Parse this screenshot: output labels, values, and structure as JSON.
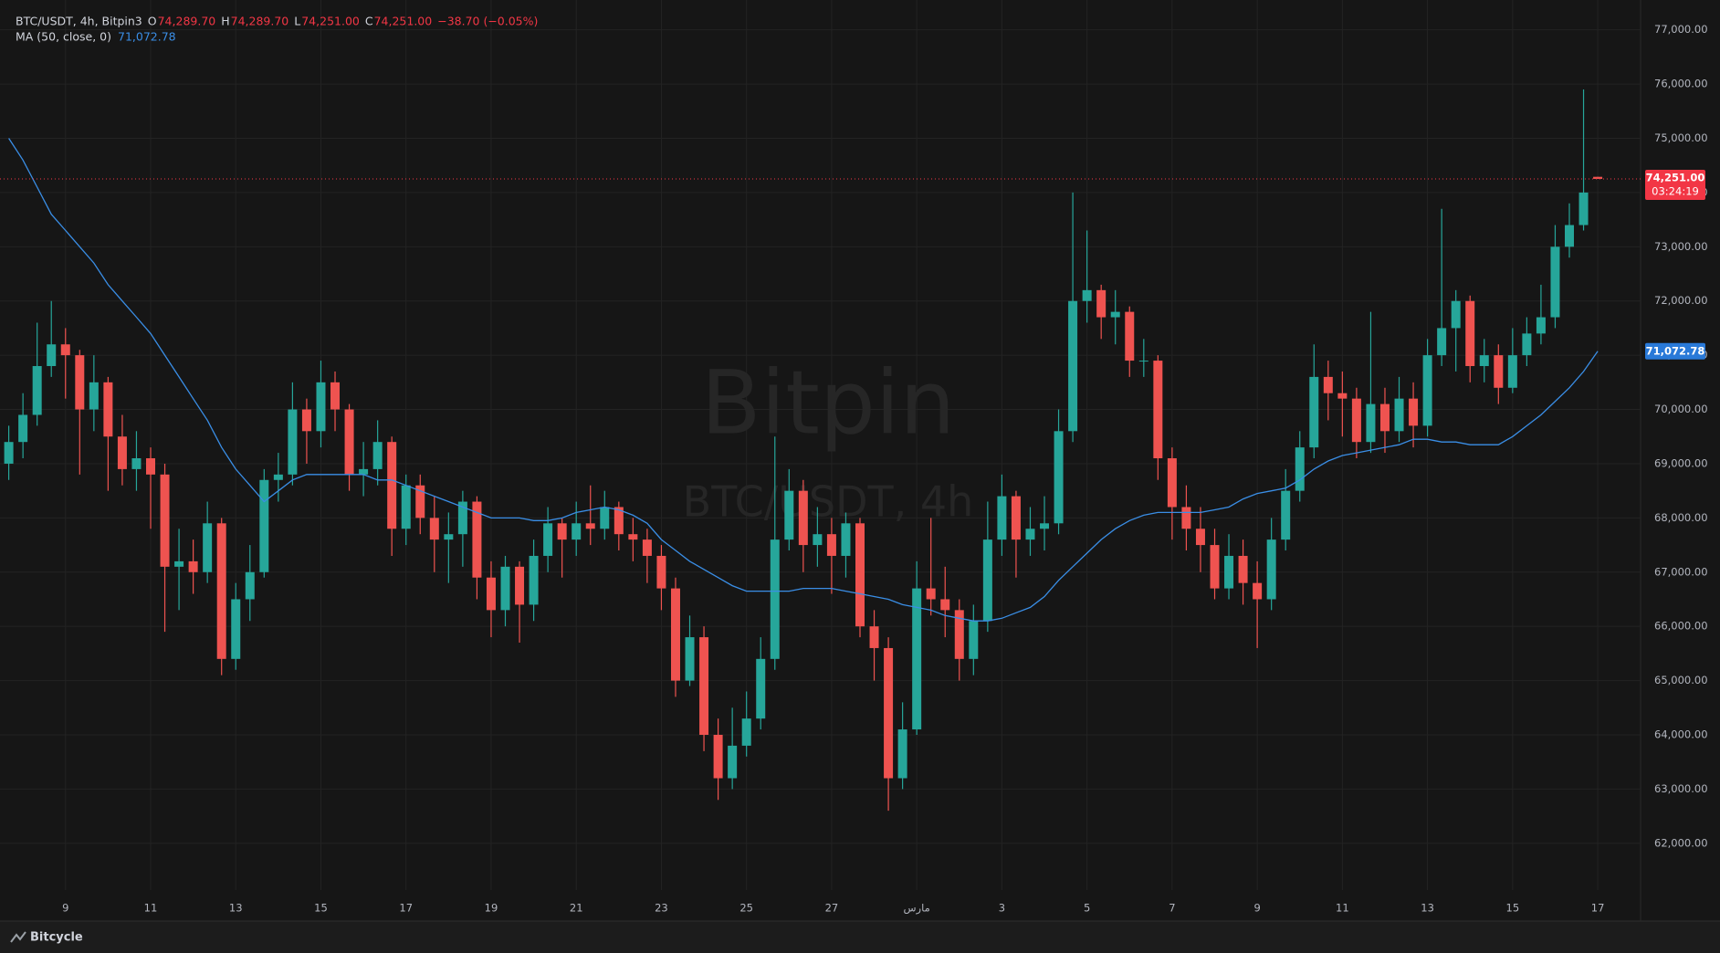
{
  "chart_data": {
    "type": "candlestick",
    "title": "BTC/USDT, 4h, Bitpin3",
    "ohlc_legend": [
      {
        "key": "O",
        "value": "74,289.70"
      },
      {
        "key": "H",
        "value": "74,289.70"
      },
      {
        "key": "L",
        "value": "74,251.00"
      },
      {
        "key": "C",
        "value": "74,251.00"
      }
    ],
    "change": "−38.70 (−0.05%)",
    "watermark": "Bitpin",
    "watermark_sub": "BTC/USDT, 4h",
    "footer": "Bitcycle",
    "up_color": "#26a69a",
    "down_color": "#ef5350",
    "grid": true,
    "categories": [
      null,
      null,
      null,
      null,
      "9",
      null,
      null,
      null,
      null,
      null,
      "11",
      null,
      null,
      null,
      null,
      null,
      "13",
      null,
      null,
      null,
      null,
      null,
      "15",
      null,
      null,
      null,
      null,
      null,
      "17",
      null,
      null,
      null,
      null,
      null,
      "19",
      null,
      null,
      null,
      null,
      null,
      "21",
      null,
      null,
      null,
      null,
      null,
      "23",
      null,
      null,
      null,
      null,
      null,
      "25",
      null,
      null,
      null,
      null,
      null,
      "27",
      null,
      null,
      null,
      null,
      null,
      "مارس",
      null,
      null,
      null,
      null,
      null,
      "3",
      null,
      null,
      null,
      null,
      null,
      "5",
      null,
      null,
      null,
      null,
      null,
      "7",
      null,
      null,
      null,
      null,
      null,
      "9",
      null,
      null,
      null,
      null,
      null,
      "11",
      null,
      null,
      null,
      null,
      null,
      "13",
      null,
      null,
      null,
      null,
      null,
      "15",
      null,
      null,
      null,
      null,
      null,
      "17"
    ],
    "open": [
      69000,
      69400,
      69900,
      70800,
      71200,
      71000,
      70000,
      70500,
      69500,
      68900,
      69100,
      68800,
      67100,
      67200,
      67000,
      67900,
      65400,
      66500,
      67000,
      68700,
      68800,
      70000,
      69600,
      70500,
      70000,
      68800,
      68900,
      69400,
      67800,
      68600,
      68000,
      67600,
      67700,
      68300,
      66900,
      66300,
      67100,
      66400,
      67300,
      67900,
      67600,
      67900,
      67800,
      68200,
      67700,
      67600,
      67300,
      66700,
      65000,
      65800,
      64000,
      63200,
      63800,
      64300,
      65400,
      67600,
      68500,
      67500,
      67700,
      67300,
      67900,
      66000,
      65600,
      63200,
      64100,
      66700,
      66500,
      66300,
      65400,
      66100,
      67600,
      68400,
      67600,
      67800,
      67900,
      69600,
      72000,
      72200,
      71700,
      71800,
      70900,
      70900,
      69100,
      68200,
      67800,
      67500,
      66700,
      67300,
      66800,
      66500,
      67600,
      68500,
      69300,
      70600,
      70300,
      70200,
      69400,
      70100,
      69600,
      70200,
      69700,
      71000,
      71500,
      72000,
      70800,
      71000,
      70400,
      71000,
      71400,
      71700,
      73000,
      73400,
      74289.7
    ],
    "high": [
      69700,
      70300,
      71600,
      72000,
      71500,
      71100,
      71000,
      70600,
      69900,
      69600,
      69300,
      69000,
      67800,
      67600,
      68300,
      68000,
      66800,
      67500,
      68900,
      69200,
      70500,
      70200,
      70900,
      70700,
      70100,
      69400,
      69800,
      69500,
      68800,
      68800,
      68400,
      68100,
      68500,
      68400,
      67200,
      67300,
      67200,
      67600,
      68200,
      68000,
      68300,
      68600,
      68500,
      68300,
      68000,
      67800,
      67500,
      66900,
      66200,
      66000,
      64300,
      64500,
      64800,
      65800,
      69500,
      68900,
      68700,
      68200,
      68000,
      68100,
      68000,
      66300,
      65800,
      64600,
      67200,
      68000,
      67100,
      66500,
      66400,
      68300,
      68800,
      68500,
      68200,
      68400,
      70000,
      74000,
      73300,
      72300,
      72200,
      71900,
      71300,
      71000,
      69300,
      68600,
      68200,
      67800,
      67700,
      67600,
      67200,
      68000,
      68900,
      69600,
      71200,
      70900,
      70700,
      70400,
      71800,
      70400,
      70600,
      70500,
      71300,
      73700,
      72200,
      72100,
      71300,
      71200,
      71500,
      71700,
      72300,
      73400,
      73800,
      75900,
      74289.7
    ],
    "low": [
      68700,
      69100,
      69700,
      70600,
      70200,
      68800,
      69600,
      68500,
      68600,
      68500,
      67800,
      65900,
      66300,
      66600,
      66800,
      65100,
      65200,
      66100,
      66900,
      68300,
      68600,
      69000,
      69300,
      69600,
      68500,
      68400,
      68600,
      67300,
      67500,
      67700,
      67000,
      66800,
      67100,
      66500,
      65800,
      66000,
      65700,
      66100,
      67000,
      66900,
      67300,
      67500,
      67600,
      67400,
      67200,
      66800,
      66300,
      64700,
      64900,
      63700,
      62800,
      63000,
      63600,
      64100,
      65200,
      67400,
      67000,
      67100,
      66600,
      66900,
      65800,
      65000,
      62600,
      63000,
      64000,
      66200,
      65800,
      65000,
      65100,
      65900,
      67300,
      66900,
      67300,
      67400,
      67700,
      69400,
      71600,
      71300,
      71200,
      70600,
      70600,
      68700,
      67600,
      67400,
      67000,
      66500,
      66500,
      66400,
      65600,
      66300,
      67400,
      68300,
      69100,
      69800,
      69500,
      69100,
      69200,
      69200,
      69400,
      69300,
      69500,
      70800,
      70700,
      70500,
      70500,
      70100,
      70300,
      70800,
      71200,
      71500,
      72800,
      73300,
      74251
    ],
    "close": [
      69400,
      69900,
      70800,
      71200,
      71000,
      70000,
      70500,
      69500,
      68900,
      69100,
      68800,
      67100,
      67200,
      67000,
      67900,
      65400,
      66500,
      67000,
      68700,
      68800,
      70000,
      69600,
      70500,
      70000,
      68800,
      68900,
      69400,
      67800,
      68600,
      68000,
      67600,
      67700,
      68300,
      66900,
      66300,
      67100,
      66400,
      67300,
      67900,
      67600,
      67900,
      67800,
      68200,
      67700,
      67600,
      67300,
      66700,
      65000,
      65800,
      64000,
      63200,
      63800,
      64300,
      65400,
      67600,
      68500,
      67500,
      67700,
      67300,
      67900,
      66000,
      65600,
      63200,
      64100,
      66700,
      66500,
      66300,
      65400,
      66100,
      67600,
      68400,
      67600,
      67800,
      67900,
      69600,
      72000,
      72200,
      71700,
      71800,
      70900,
      70900,
      69100,
      68200,
      67800,
      67500,
      66700,
      67300,
      66800,
      66500,
      67600,
      68500,
      69300,
      70600,
      70300,
      70200,
      69400,
      70100,
      69600,
      70200,
      69700,
      71000,
      71500,
      72000,
      70800,
      71000,
      70400,
      71000,
      71400,
      71700,
      73000,
      73400,
      74000,
      74251
    ],
    "ma": {
      "name": "MA (50, close, 0)",
      "value_label": "71,072.78",
      "color": "#3a8ee6",
      "values": [
        75000,
        74600,
        74100,
        73600,
        73300,
        73000,
        72700,
        72300,
        72000,
        71700,
        71400,
        71000,
        70600,
        70200,
        69800,
        69300,
        68900,
        68600,
        68300,
        68500,
        68700,
        68800,
        68800,
        68800,
        68800,
        68800,
        68700,
        68700,
        68600,
        68500,
        68400,
        68300,
        68200,
        68100,
        68000,
        68000,
        68000,
        67950,
        67950,
        68000,
        68100,
        68150,
        68200,
        68150,
        68050,
        67900,
        67600,
        67400,
        67200,
        67050,
        66900,
        66750,
        66650,
        66650,
        66650,
        66650,
        66700,
        66700,
        66700,
        66650,
        66600,
        66550,
        66500,
        66400,
        66350,
        66300,
        66200,
        66150,
        66100,
        66100,
        66150,
        66250,
        66350,
        66550,
        66850,
        67100,
        67350,
        67600,
        67800,
        67950,
        68050,
        68100,
        68100,
        68100,
        68100,
        68150,
        68200,
        68350,
        68450,
        68500,
        68550,
        68700,
        68900,
        69050,
        69150,
        69200,
        69250,
        69300,
        69350,
        69450,
        69450,
        69400,
        69400,
        69350,
        69350,
        69350,
        69500,
        69700,
        69900,
        70150,
        70400,
        70700,
        71072.78
      ]
    },
    "last_price": {
      "value": 74251,
      "label": "74,251.00",
      "countdown": "03:24:19",
      "color": "#f23645"
    },
    "ylim": [
      60600,
      77550
    ],
    "yticks": [
      {
        "value": 62000,
        "label": "62,000.00"
      },
      {
        "value": 63000,
        "label": "63,000.00"
      },
      {
        "value": 64000,
        "label": "64,000.00"
      },
      {
        "value": 65000,
        "label": "65,000.00"
      },
      {
        "value": 66000,
        "label": "66,000.00"
      },
      {
        "value": 67000,
        "label": "67,000.00"
      },
      {
        "value": 68000,
        "label": "68,000.00"
      },
      {
        "value": 69000,
        "label": "69,000.00"
      },
      {
        "value": 70000,
        "label": "70,000.00"
      },
      {
        "value": 71000,
        "label": "71,000.00"
      },
      {
        "value": 72000,
        "label": "72,000.00"
      },
      {
        "value": 73000,
        "label": "73,000.00"
      },
      {
        "value": 74000,
        "label": "74,000.00"
      },
      {
        "value": 75000,
        "label": "75,000.00"
      },
      {
        "value": 76000,
        "label": "76,000.00"
      },
      {
        "value": 77000,
        "label": "77,000.00"
      }
    ]
  }
}
